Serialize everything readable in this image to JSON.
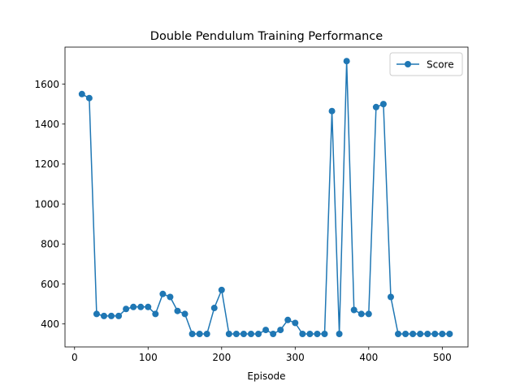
{
  "chart_data": {
    "type": "line",
    "title": "Double Pendulum Training Performance",
    "xlabel": "Episode",
    "ylabel": "",
    "xlim": [
      -13,
      535
    ],
    "ylim": [
      285,
      1785
    ],
    "xticks": [
      0,
      100,
      200,
      300,
      400,
      500
    ],
    "yticks": [
      400,
      600,
      800,
      1000,
      1200,
      1400,
      1600
    ],
    "grid": false,
    "legend_position": "top-right",
    "series": [
      {
        "name": "Score",
        "color": "#1f77b4",
        "marker": "circle",
        "x": [
          10,
          20,
          30,
          40,
          50,
          60,
          70,
          80,
          90,
          100,
          110,
          120,
          130,
          140,
          150,
          160,
          170,
          180,
          190,
          200,
          210,
          220,
          230,
          240,
          250,
          260,
          270,
          280,
          290,
          300,
          310,
          320,
          330,
          340,
          350,
          360,
          370,
          380,
          390,
          400,
          410,
          420,
          430,
          440,
          450,
          460,
          470,
          480,
          490,
          500,
          510
        ],
        "y": [
          1550,
          1530,
          450,
          440,
          440,
          440,
          475,
          485,
          485,
          485,
          450,
          550,
          535,
          465,
          450,
          350,
          350,
          350,
          480,
          570,
          350,
          350,
          350,
          350,
          350,
          370,
          350,
          370,
          420,
          405,
          350,
          350,
          350,
          350,
          1465,
          350,
          1715,
          470,
          450,
          450,
          1485,
          1500,
          535,
          350,
          350,
          350,
          350,
          350,
          350,
          350,
          350
        ]
      }
    ]
  }
}
